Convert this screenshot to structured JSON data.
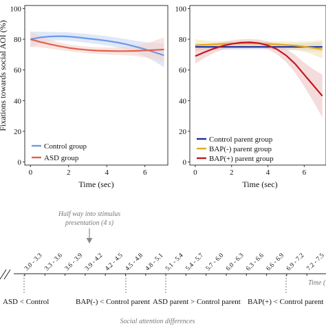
{
  "chart_data": [
    {
      "type": "line",
      "panel": "left",
      "ylabel": "Fixations towards social AOI (%)",
      "xlabel": "Time (sec)",
      "xlim": [
        -0.3,
        7.2
      ],
      "ylim": [
        -2,
        102
      ],
      "x_ticks": [
        0,
        2,
        4,
        6
      ],
      "y_ticks": [
        0,
        20,
        40,
        60,
        80,
        100
      ],
      "legend_position": "bottom-left",
      "series": [
        {
          "name": "Control group",
          "color": "#6a9ae8",
          "band_color": "#c9d8f4",
          "x": [
            0,
            0.5,
            1,
            1.5,
            2,
            2.5,
            3,
            3.5,
            4,
            4.5,
            5,
            5.5,
            6,
            6.5,
            7
          ],
          "values": [
            80,
            81.2,
            81.8,
            82,
            81.8,
            81.2,
            80.5,
            79.8,
            79,
            78,
            76.8,
            75.2,
            73.5,
            71.5,
            69.5
          ],
          "band_lower": [
            75,
            77.5,
            78.8,
            79.3,
            79.1,
            78.4,
            77.6,
            76.9,
            76,
            74.9,
            73.4,
            71.4,
            68.8,
            65.5,
            61.8
          ],
          "band_upper": [
            85,
            84.9,
            84.8,
            84.7,
            84.5,
            84,
            83.4,
            82.7,
            82,
            81.1,
            80.2,
            79,
            78.2,
            77.5,
            77.2
          ]
        },
        {
          "name": "ASD group",
          "color": "#e0614f",
          "band_color": "#f6d2cc",
          "x": [
            0,
            0.5,
            1,
            1.5,
            2,
            2.5,
            3,
            3.5,
            4,
            4.5,
            5,
            5.5,
            6,
            6.5,
            7
          ],
          "values": [
            80,
            78.3,
            76.8,
            75.5,
            74.4,
            73.6,
            73,
            72.6,
            72.4,
            72.3,
            72.3,
            72.4,
            72.7,
            73,
            73.3
          ],
          "band_lower": [
            75,
            74.8,
            74,
            73.1,
            72.2,
            71.4,
            70.8,
            70.4,
            70.1,
            69.9,
            69.6,
            69.1,
            68.3,
            67,
            65.3
          ],
          "band_upper": [
            85,
            81.8,
            79.6,
            77.9,
            76.6,
            75.8,
            75.2,
            74.8,
            74.7,
            74.7,
            75,
            75.7,
            77.1,
            79,
            81.3
          ]
        }
      ]
    },
    {
      "type": "line",
      "panel": "right",
      "xlabel": "Time (sec)",
      "xlim": [
        -0.3,
        7.2
      ],
      "ylim": [
        -2,
        102
      ],
      "x_ticks": [
        0,
        2,
        4,
        6
      ],
      "y_ticks": [
        0,
        20,
        40,
        60,
        80,
        100
      ],
      "legend_position": "bottom-left",
      "series": [
        {
          "name": "Control parent group",
          "color": "#1c2f9c",
          "band_color": "#c6cbe8",
          "x": [
            0,
            0.5,
            1,
            1.5,
            2,
            2.5,
            3,
            3.5,
            4,
            4.5,
            5,
            5.5,
            6,
            6.5,
            7
          ],
          "values": [
            75,
            75,
            75,
            75,
            75,
            75,
            75,
            75,
            75,
            75,
            75,
            75,
            75,
            75,
            75
          ],
          "band_lower": [
            72.5,
            72.8,
            73,
            73.2,
            73.3,
            73.4,
            73.5,
            73.5,
            73.4,
            73.3,
            73.1,
            72.9,
            72.6,
            72.2,
            71.8
          ],
          "band_upper": [
            77.5,
            77.2,
            77,
            76.8,
            76.7,
            76.6,
            76.5,
            76.5,
            76.6,
            76.7,
            76.9,
            77.1,
            77.4,
            77.8,
            78.2
          ]
        },
        {
          "name": "BAP(-) parent group",
          "color": "#e2a91d",
          "band_color": "#f4e3b2",
          "x": [
            0,
            0.5,
            1,
            1.5,
            2,
            2.5,
            3,
            3.5,
            4,
            4.5,
            5,
            5.5,
            6,
            6.5,
            7
          ],
          "values": [
            76,
            76.4,
            76.7,
            77,
            77.2,
            77.3,
            77.3,
            77.2,
            77,
            76.7,
            76.3,
            75.8,
            75.2,
            74.4,
            73.5
          ],
          "band_lower": [
            72,
            73.6,
            74.6,
            75.2,
            75.6,
            75.8,
            75.8,
            75.6,
            75.3,
            74.8,
            74.1,
            73.2,
            71.8,
            70,
            67.5
          ],
          "band_upper": [
            80,
            79.2,
            78.8,
            78.8,
            78.8,
            78.8,
            78.8,
            78.8,
            78.7,
            78.6,
            78.5,
            78.4,
            78.6,
            78.8,
            79.5
          ]
        },
        {
          "name": "BAP(+) parent group",
          "color": "#c0181d",
          "band_color": "#efc5c5",
          "x": [
            0,
            0.5,
            1,
            1.5,
            2,
            2.5,
            3,
            3.5,
            4,
            4.5,
            5,
            5.5,
            6,
            6.5,
            7
          ],
          "values": [
            69,
            71.5,
            73.8,
            75.7,
            77,
            77.8,
            78,
            77.5,
            76,
            73.5,
            69.5,
            64,
            57,
            50,
            43
          ],
          "band_lower": [
            64,
            67.8,
            70.9,
            73.2,
            74.7,
            75.6,
            75.8,
            75.2,
            73.4,
            70.2,
            65.2,
            58.2,
            49.2,
            39.5,
            29
          ],
          "band_upper": [
            74,
            75.2,
            76.7,
            78.2,
            79.3,
            80,
            80.2,
            79.8,
            78.6,
            76.8,
            73.8,
            69.8,
            64.8,
            60.5,
            57
          ]
        }
      ]
    }
  ],
  "timeline": {
    "annotation_line1": "Half way into stimulus",
    "annotation_line2": "presentation (4 s)",
    "intervals": [
      "3.0 - 3.3",
      "3.3 - 3.6",
      "3.6 - 3.9",
      "3.9 - 4.2",
      "4.2 - 4.5",
      "4.5 - 4.8",
      "4.8 - 5.1",
      "5.1 - 5.4",
      "5.4 - 5.7",
      "5.7 - 6.0",
      "6.0 - 6.3",
      "6.3 - 6.6",
      "6.6 - 6.9",
      "6.9 - 7.2",
      "7.2 - 7.5"
    ],
    "axis_label": "Time (",
    "findings": [
      "ASD < Control",
      "BAP(-) < Control parent",
      "ASD parent > Control parent",
      "BAP(+) < Control parent ="
    ],
    "footer": "Social attention differences"
  }
}
